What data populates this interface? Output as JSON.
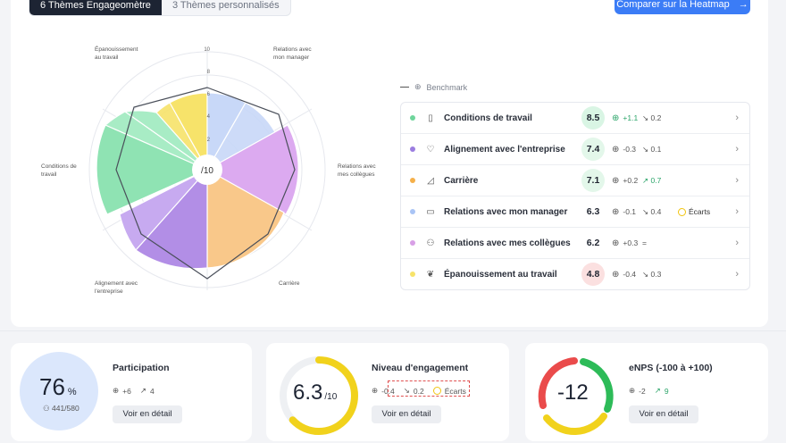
{
  "tabs": [
    {
      "label": "6 Thèmes Engageomètre",
      "active": true
    },
    {
      "label": "3 Thèmes personnalisés",
      "active": false
    }
  ],
  "compare_button": {
    "label": "Comparer sur la Heatmap",
    "icon": "arrow-right-icon"
  },
  "radar": {
    "center_label": "/10",
    "scale_ticks": [
      "10",
      "8",
      "6",
      "4",
      "2"
    ],
    "axis_labels": {
      "epanouissement": [
        "Épanouissement",
        "au travail"
      ],
      "relations_manager": [
        "Relations avec",
        "mon manager"
      ],
      "relations_collegues": [
        "Relations avec",
        "mes collègues"
      ],
      "carriere": [
        "Carrière"
      ],
      "alignement": [
        "Alignement avec",
        "l'entreprise"
      ],
      "conditions": [
        "Conditions de",
        "travail"
      ]
    }
  },
  "benchmark_legend": {
    "label": "Benchmark"
  },
  "themes": [
    {
      "label": "Conditions de travail",
      "icon": "building-icon",
      "color": "#6fd59b",
      "score": "8.5",
      "score_bg": "#d9f5e4",
      "benchmark": "+1.1",
      "benchmark_color": "#2ca56a",
      "trend": "0.2",
      "trend_dir": "down",
      "trend_color": "#555",
      "ecarts": ""
    },
    {
      "label": "Alignement avec l'entreprise",
      "icon": "heart-icon",
      "color": "#9b7de0",
      "score": "7.4",
      "score_bg": "#e3f7ea",
      "benchmark": "-0.3",
      "benchmark_color": "#555",
      "trend": "0.1",
      "trend_dir": "down",
      "trend_color": "#555",
      "ecarts": ""
    },
    {
      "label": "Carrière",
      "icon": "chart-icon",
      "color": "#f5b04a",
      "score": "7.1",
      "score_bg": "#e3f7ea",
      "benchmark": "+0.2",
      "benchmark_color": "#555",
      "trend": "0.7",
      "trend_dir": "up",
      "trend_color": "#2ca56a",
      "ecarts": ""
    },
    {
      "label": "Relations avec mon manager",
      "icon": "briefcase-icon",
      "color": "#a9c4f5",
      "score": "6.3",
      "score_bg": "transparent",
      "benchmark": "-0.1",
      "benchmark_color": "#555",
      "trend": "0.4",
      "trend_dir": "down",
      "trend_color": "#555",
      "ecarts": "Écarts"
    },
    {
      "label": "Relations avec mes collègues",
      "icon": "people-icon",
      "color": "#d8a0e6",
      "score": "6.2",
      "score_bg": "transparent",
      "benchmark": "+0.3",
      "benchmark_color": "#555",
      "trend": "=",
      "trend_dir": "eq",
      "trend_color": "#555",
      "ecarts": ""
    },
    {
      "label": "Épanouissement au travail",
      "icon": "leaf-icon",
      "color": "#f7e36a",
      "score": "4.8",
      "score_bg": "#fbe0e0",
      "benchmark": "-0.4",
      "benchmark_color": "#555",
      "trend": "0.3",
      "trend_dir": "down",
      "trend_color": "#555",
      "ecarts": ""
    }
  ],
  "cards": {
    "participation": {
      "title": "Participation",
      "value": "76",
      "unit": "%",
      "respondents": "441/580",
      "benchmark": "+6",
      "trend": "4",
      "button": "Voir en détail",
      "percent": 76
    },
    "engagement": {
      "title": "Niveau d'engagement",
      "value": "6.3",
      "unit": "/10",
      "benchmark": "-0.4",
      "trend": "0.2",
      "ecarts": "Écarts",
      "button": "Voir en détail",
      "score": 6.3
    },
    "enps": {
      "title": "eNPS (-100 à +100)",
      "value": "-12",
      "benchmark": "-2",
      "trend": "9",
      "button": "Voir en détail",
      "score": -12
    }
  },
  "colors": {
    "accent": "#3b7cf6",
    "green": "#2ca56a",
    "yellow": "#f1d21c",
    "red": "#ea4b4b"
  }
}
